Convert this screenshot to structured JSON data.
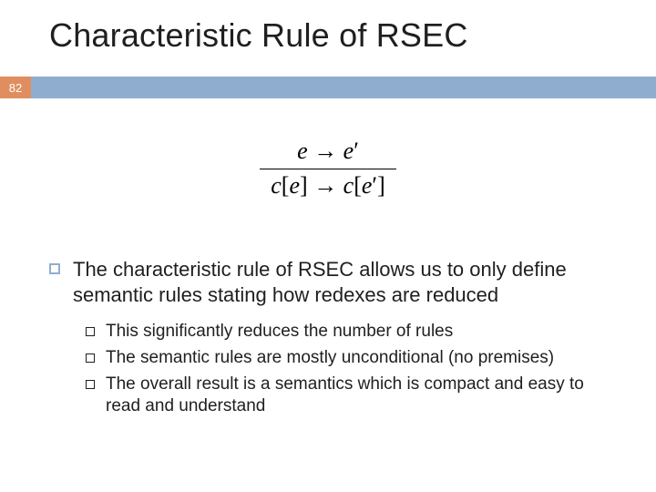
{
  "title": "Characteristic Rule of RSEC",
  "page_number": "82",
  "stripe": {
    "accent_color": "#e08e5f",
    "fill_color": "#8faecf"
  },
  "formula": {
    "top": "e → e′",
    "bottom": "c[e] → c[e′]"
  },
  "main_bullet": "The characteristic rule of RSEC allows us to only define semantic rules stating how redexes are reduced",
  "sub_bullets": [
    "This significantly reduces the number of rules",
    "The semantic rules are mostly unconditional (no premises)",
    "The overall result is a semantics which is compact and easy to read and understand"
  ]
}
